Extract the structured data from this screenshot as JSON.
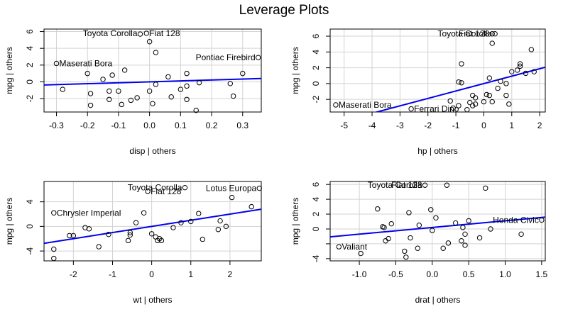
{
  "title": "Leverage Plots",
  "colors": {
    "fit_line": "#0000ee",
    "grid": "#d3d3d3",
    "points": "#000000"
  },
  "chart_data": [
    {
      "type": "scatter",
      "title": "",
      "xlabel": "disp | others",
      "ylabel": "mpg  | others",
      "xlim": [
        -0.34,
        0.36
      ],
      "ylim": [
        -3.6,
        6.3
      ],
      "xticks": [
        -0.3,
        -0.2,
        -0.1,
        0.0,
        0.1,
        0.2,
        0.3
      ],
      "xtick_labels": [
        "-0.3",
        "-0.2",
        "-0.1",
        "0.0",
        "0.1",
        "0.2",
        "0.3"
      ],
      "yticks": [
        -2,
        0,
        2,
        4,
        6
      ],
      "ytick_labels": [
        "-2",
        "0",
        "2",
        "4",
        "6"
      ],
      "grid": true,
      "points": [
        [
          -0.28,
          -0.9
        ],
        [
          -0.2,
          1.0
        ],
        [
          -0.19,
          -1.4
        ],
        [
          -0.19,
          -2.8
        ],
        [
          -0.15,
          0.3
        ],
        [
          -0.13,
          -1.1
        ],
        [
          -0.13,
          -2.1
        ],
        [
          -0.12,
          0.8
        ],
        [
          -0.1,
          -1.1
        ],
        [
          -0.09,
          -2.7
        ],
        [
          -0.08,
          1.4
        ],
        [
          -0.06,
          -2.2
        ],
        [
          -0.04,
          -1.9
        ],
        [
          -0.03,
          5.7
        ],
        [
          -0.01,
          5.8
        ],
        [
          0.0,
          4.8
        ],
        [
          0.0,
          -1.1
        ],
        [
          0.01,
          -2.6
        ],
        [
          0.02,
          -0.3
        ],
        [
          0.02,
          3.5
        ],
        [
          0.06,
          0.6
        ],
        [
          0.07,
          -1.8
        ],
        [
          0.1,
          -0.9
        ],
        [
          0.12,
          -2.1
        ],
        [
          0.12,
          1.0
        ],
        [
          0.12,
          -0.5
        ],
        [
          0.15,
          -3.4
        ],
        [
          0.16,
          -0.1
        ],
        [
          0.26,
          -0.2
        ],
        [
          0.27,
          -1.7
        ],
        [
          0.3,
          1.0
        ],
        [
          0.35,
          2.9
        ],
        [
          -0.3,
          2.2
        ]
      ],
      "fit": {
        "intercept": 0.0,
        "slope": 1.1
      },
      "annotations": [
        {
          "text": "Toyota Corolla",
          "x": -0.03,
          "y": 5.8,
          "align": "end"
        },
        {
          "text": "Fiat 128",
          "x": -0.01,
          "y": 5.8,
          "align": "start"
        },
        {
          "text": "Maserati Bora",
          "x": -0.3,
          "y": 2.2,
          "align": "start"
        },
        {
          "text": "Pontiac Firebird",
          "x": 0.35,
          "y": 2.9,
          "align": "end"
        }
      ]
    },
    {
      "type": "scatter",
      "title": "",
      "xlabel": "hp | others",
      "ylabel": "mpg  | others",
      "xlim": [
        -5.5,
        2.2
      ],
      "ylim": [
        -3.6,
        6.9
      ],
      "xticks": [
        -5,
        -4,
        -3,
        -2,
        -1,
        0,
        1,
        2
      ],
      "xtick_labels": [
        "-5",
        "-4",
        "-3",
        "-2",
        "-1",
        "0",
        "1",
        "2"
      ],
      "yticks": [
        -2,
        0,
        2,
        4,
        6
      ],
      "ytick_labels": [
        "-2",
        "0",
        "2",
        "4",
        "6"
      ],
      "grid": true,
      "points": [
        [
          -5.3,
          -2.7
        ],
        [
          -2.6,
          -3.2
        ],
        [
          -1.2,
          -2.2
        ],
        [
          -1.1,
          -3.1
        ],
        [
          -0.9,
          -2.8
        ],
        [
          -0.9,
          0.2
        ],
        [
          -0.8,
          0.1
        ],
        [
          -0.8,
          2.5
        ],
        [
          -0.6,
          -3.3
        ],
        [
          -0.5,
          -2.4
        ],
        [
          -0.4,
          -2.8
        ],
        [
          -0.4,
          -1.5
        ],
        [
          -0.3,
          -1.8
        ],
        [
          -0.3,
          -2.6
        ],
        [
          0.0,
          -2.3
        ],
        [
          0.1,
          -1.4
        ],
        [
          0.2,
          -1.5
        ],
        [
          0.2,
          0.7
        ],
        [
          0.3,
          -2.3
        ],
        [
          0.3,
          5.1
        ],
        [
          0.4,
          6.3
        ],
        [
          0.5,
          -0.6
        ],
        [
          0.6,
          0.3
        ],
        [
          0.8,
          -1.5
        ],
        [
          0.8,
          0.0
        ],
        [
          0.9,
          -2.6
        ],
        [
          1.0,
          1.5
        ],
        [
          1.2,
          1.7
        ],
        [
          1.3,
          2.5
        ],
        [
          1.3,
          2.2
        ],
        [
          1.5,
          1.3
        ],
        [
          1.8,
          1.5
        ],
        [
          1.7,
          4.3
        ],
        [
          0.3,
          6.3
        ]
      ],
      "fit": {
        "intercept": 0.0,
        "slope": 0.94
      },
      "annotations": [
        {
          "text": "Toyota Corolla",
          "x": 0.4,
          "y": 6.3,
          "align": "end"
        },
        {
          "text": "Fiat 128",
          "x": 0.3,
          "y": 6.3,
          "align": "end"
        },
        {
          "text": "Maserati Bora",
          "x": -5.3,
          "y": -2.7,
          "align": "start"
        },
        {
          "text": "Ferrari Dino",
          "x": -2.6,
          "y": -3.2,
          "align": "start"
        }
      ]
    },
    {
      "type": "scatter",
      "title": "",
      "xlabel": "wt | others",
      "ylabel": "mpg  | others",
      "xlim": [
        -2.75,
        2.8
      ],
      "ylim": [
        -5.6,
        7.3
      ],
      "xticks": [
        -2,
        -1,
        0,
        1,
        2
      ],
      "xtick_labels": [
        "-2",
        "-1",
        "0",
        "1",
        "2"
      ],
      "yticks": [
        -4,
        0,
        4
      ],
      "ytick_labels": [
        "-4",
        "0",
        "4"
      ],
      "grid": true,
      "points": [
        [
          -2.5,
          2.2
        ],
        [
          -2.5,
          -3.7
        ],
        [
          -2.5,
          -5.2
        ],
        [
          -2.1,
          -1.5
        ],
        [
          -2.0,
          -1.5
        ],
        [
          -1.7,
          -0.2
        ],
        [
          -1.6,
          -0.4
        ],
        [
          -1.35,
          -3.3
        ],
        [
          -1.1,
          -1.3
        ],
        [
          -0.6,
          -2.3
        ],
        [
          -0.55,
          -1.0
        ],
        [
          -0.55,
          -1.4
        ],
        [
          -0.4,
          0.6
        ],
        [
          -0.2,
          2.2
        ],
        [
          -0.1,
          5.7
        ],
        [
          0.0,
          -1.2
        ],
        [
          0.1,
          -1.7
        ],
        [
          0.15,
          -2.3
        ],
        [
          0.2,
          -2.0
        ],
        [
          0.25,
          -2.3
        ],
        [
          0.55,
          -0.2
        ],
        [
          0.75,
          0.6
        ],
        [
          0.85,
          6.3
        ],
        [
          1.0,
          0.8
        ],
        [
          1.2,
          2.1
        ],
        [
          1.3,
          -2.1
        ],
        [
          1.7,
          -0.5
        ],
        [
          1.75,
          0.9
        ],
        [
          1.9,
          0.0
        ],
        [
          2.05,
          4.7
        ],
        [
          2.55,
          3.2
        ],
        [
          2.75,
          6.2
        ]
      ],
      "fit": {
        "intercept": 0.0,
        "slope": 1.0
      },
      "annotations": [
        {
          "text": "Toyota Corolla",
          "x": 0.85,
          "y": 6.3,
          "align": "end"
        },
        {
          "text": "Fiat 128",
          "x": -0.1,
          "y": 5.7,
          "align": "start"
        },
        {
          "text": "Chrysler Imperial",
          "x": -2.5,
          "y": 2.2,
          "align": "start"
        },
        {
          "text": "Lotus Europa",
          "x": 2.75,
          "y": 6.2,
          "align": "end"
        }
      ]
    },
    {
      "type": "scatter",
      "title": "",
      "xlabel": "drat | others",
      "ylabel": "mpg  | others",
      "xlim": [
        -1.4,
        1.55
      ],
      "ylim": [
        -4.3,
        6.4
      ],
      "xticks": [
        -1.0,
        -0.5,
        0.0,
        0.5,
        1.0,
        1.5
      ],
      "xtick_labels": [
        "-1.0",
        "-0.5",
        "0.0",
        "0.5",
        "1.0",
        "1.5"
      ],
      "yticks": [
        -4,
        -2,
        0,
        2,
        4,
        6
      ],
      "ytick_labels": [
        "-4",
        "",
        "0",
        "2",
        "4",
        "6"
      ],
      "grid": true,
      "points": [
        [
          -1.28,
          -2.4
        ],
        [
          -0.98,
          -3.3
        ],
        [
          -0.75,
          2.7
        ],
        [
          -0.68,
          0.3
        ],
        [
          -0.66,
          0.2
        ],
        [
          -0.64,
          -1.6
        ],
        [
          -0.6,
          -1.3
        ],
        [
          -0.56,
          0.7
        ],
        [
          -0.38,
          -3.0
        ],
        [
          -0.36,
          -3.8
        ],
        [
          -0.32,
          2.2
        ],
        [
          -0.3,
          -1.2
        ],
        [
          -0.2,
          -2.6
        ],
        [
          -0.18,
          0.5
        ],
        [
          -0.1,
          5.9
        ],
        [
          -0.02,
          2.6
        ],
        [
          0.0,
          -0.2
        ],
        [
          0.05,
          1.5
        ],
        [
          0.15,
          -2.6
        ],
        [
          0.2,
          5.9
        ],
        [
          0.22,
          -1.9
        ],
        [
          0.32,
          0.8
        ],
        [
          0.4,
          -1.6
        ],
        [
          0.42,
          0.2
        ],
        [
          0.45,
          -2.2
        ],
        [
          0.45,
          -0.7
        ],
        [
          0.5,
          1.1
        ],
        [
          0.65,
          -1.2
        ],
        [
          0.73,
          5.5
        ],
        [
          0.8,
          0.0
        ],
        [
          1.22,
          -0.7
        ],
        [
          1.5,
          1.2
        ]
      ],
      "fit": {
        "intercept": 0.2,
        "slope": 0.9
      },
      "annotations": [
        {
          "text": "Toyota Corolla",
          "x": -0.1,
          "y": 5.9,
          "align": "end"
        },
        {
          "text": "Fiat 128",
          "x": -0.1,
          "y": 5.9,
          "align": "end"
        },
        {
          "text": "Valiant",
          "x": -1.28,
          "y": -2.4,
          "align": "start"
        },
        {
          "text": "Honda Civic",
          "x": 1.5,
          "y": 1.2,
          "align": "end"
        }
      ]
    }
  ]
}
